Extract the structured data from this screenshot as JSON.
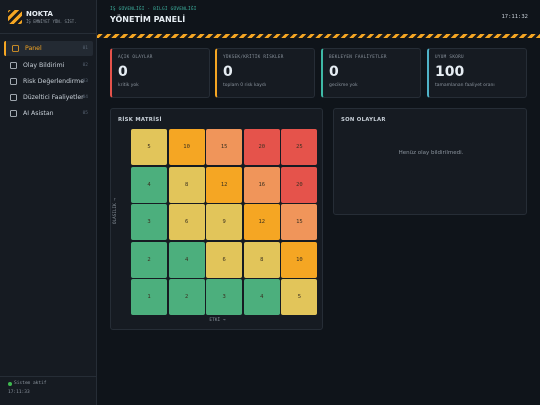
{
  "sidebar": {
    "brand": "NOKTA",
    "brand_subtitle": "İŞ EMNİYET YÖN. SİST.",
    "menu": [
      {
        "label": "Panel",
        "index": "01"
      },
      {
        "label": "Olay Bildirimi",
        "index": "02"
      },
      {
        "label": "Risk Değerlendirme",
        "index": "03"
      },
      {
        "label": "Düzeltici Faaliyetler",
        "index": "04"
      },
      {
        "label": "AI Asistan",
        "index": "05"
      }
    ],
    "status": "Sistem aktif",
    "status_time": "17:11:33"
  },
  "header": {
    "eyebrow": "İŞ GÜVENLİĞİ · BİLGİ GÜVENLİĞİ",
    "title": "YÖNETİM PANELİ",
    "time": "17:11:32"
  },
  "cards": [
    {
      "label": "AÇIK OLAYLAR",
      "value": "0",
      "note": "kritik yok",
      "color": "#e5534b"
    },
    {
      "label": "YÜKSEK/KRİTİK RİSKLER",
      "value": "0",
      "note": "toplam 0 risk kaydı",
      "color": "#f5a623"
    },
    {
      "label": "BEKLEYEN FAALİYETLER",
      "value": "0",
      "note": "gecikme yok",
      "color": "#3fb9a6"
    },
    {
      "label": "UYUM SKORU",
      "value": "100",
      "note": "tamamlanan faaliyet oranı",
      "color": "#4fb3c9"
    }
  ],
  "matrix": {
    "title": "RİSK MATRİSİ",
    "y_label": "OLASILIK →",
    "x_label": "ETKİ →",
    "rows": [
      [
        "5",
        "10",
        "15",
        "20",
        "25"
      ],
      [
        "4",
        "8",
        "12",
        "16",
        "20"
      ],
      [
        "3",
        "6",
        "9",
        "12",
        "15"
      ],
      [
        "2",
        "4",
        "6",
        "8",
        "10"
      ],
      [
        "1",
        "2",
        "3",
        "4",
        "5"
      ]
    ]
  },
  "events": {
    "title": "SON OLAYLAR",
    "empty": "Henüz olay bildirilmedi."
  }
}
